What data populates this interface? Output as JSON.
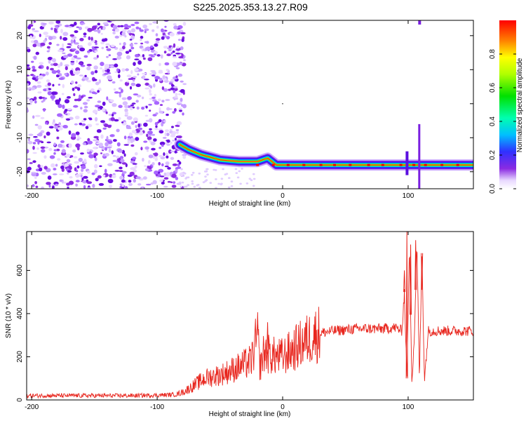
{
  "title": "S225.2025.353.13.27.R09",
  "spectrogram": {
    "type": "heatmap",
    "xlabel": "Height of straight line (km)",
    "ylabel": "Frequency (Hz)",
    "xlim": [
      -204,
      152
    ],
    "ylim": [
      -25,
      24.5
    ],
    "xticks": [
      -200,
      -100,
      0,
      100
    ],
    "yticks": [
      -20,
      -10,
      0,
      10,
      20
    ],
    "colorbar": {
      "label": "Normalized spectral amplitude",
      "ticks": [
        0.0,
        0.2,
        0.4,
        0.6,
        0.8
      ],
      "range": [
        0,
        1
      ]
    },
    "noise_region_x": [
      -204,
      -82
    ],
    "tone_track": [
      {
        "x": -82,
        "f": -12
      },
      {
        "x": -75,
        "f": -13.5
      },
      {
        "x": -65,
        "f": -15
      },
      {
        "x": -50,
        "f": -16.5
      },
      {
        "x": -35,
        "f": -17
      },
      {
        "x": -20,
        "f": -17
      },
      {
        "x": -12,
        "f": -16
      },
      {
        "x": -5,
        "f": -18
      },
      {
        "x": 20,
        "f": -18
      },
      {
        "x": 60,
        "f": -18
      },
      {
        "x": 100,
        "f": -18
      },
      {
        "x": 152,
        "f": -18
      }
    ]
  },
  "snr": {
    "type": "line",
    "xlabel": "Height of straight line (km)",
    "ylabel": "SNR (10 * v/v)",
    "xlim": [
      -204,
      152
    ],
    "ylim": [
      0,
      780
    ],
    "xticks": [
      -200,
      -100,
      0,
      100
    ],
    "yticks": [
      0,
      200,
      400,
      600
    ],
    "color": "#e8261e",
    "series": [
      {
        "name": "SNR",
        "x": [
          -204,
          -180,
          -150,
          -120,
          -100,
          -85,
          -78,
          -70,
          -62,
          -55,
          -48,
          -40,
          -32,
          -25,
          -20,
          -18,
          -15,
          -10,
          -5,
          0,
          5,
          10,
          15,
          20,
          25,
          30,
          40,
          50,
          60,
          70,
          80,
          90,
          95,
          97,
          99,
          101,
          103,
          105,
          107,
          109,
          111,
          113,
          116,
          120,
          130,
          140,
          152
        ],
        "y": [
          20,
          20,
          20,
          20,
          22,
          25,
          40,
          70,
          100,
          110,
          120,
          140,
          160,
          180,
          300,
          150,
          220,
          210,
          200,
          200,
          220,
          240,
          260,
          280,
          300,
          310,
          320,
          325,
          330,
          330,
          330,
          335,
          320,
          500,
          100,
          700,
          90,
          300,
          720,
          100,
          680,
          90,
          320,
          320,
          320,
          320,
          320
        ]
      }
    ],
    "spikes": [
      {
        "x": -20,
        "y": 370
      },
      {
        "x": -12,
        "y": 360
      },
      {
        "x": 97,
        "y": 600
      },
      {
        "x": 99,
        "y": 780
      },
      {
        "x": 102,
        "y": 720
      },
      {
        "x": 106,
        "y": 740
      },
      {
        "x": 111,
        "y": 510
      }
    ]
  }
}
